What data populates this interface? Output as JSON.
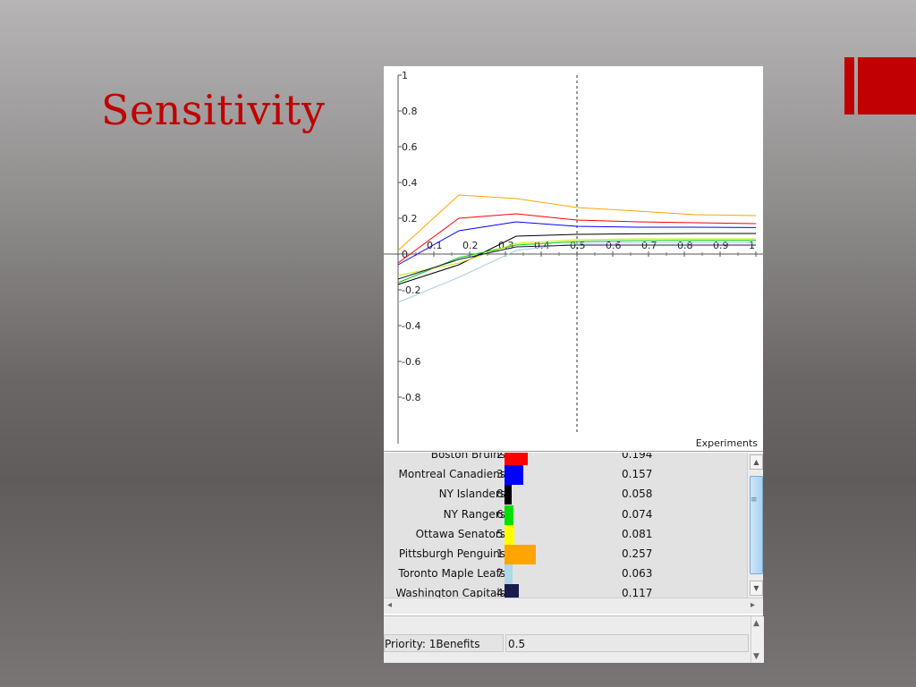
{
  "slide": {
    "title": "Sensitivity"
  },
  "chart_data": {
    "type": "line",
    "xlabel": "Experiments",
    "ylabel": "",
    "xlim": [
      0,
      1
    ],
    "ylim": [
      -1,
      1
    ],
    "x_ticks": [
      "0.1",
      "0.2",
      "0.3",
      "0.4",
      "0.5",
      "0.6",
      "0.7",
      "0.8",
      "0.9",
      "1"
    ],
    "y_ticks": [
      "1",
      "0.8",
      "0.6",
      "0.4",
      "0.2",
      "0",
      "-0.2",
      "-0.4",
      "-0.6",
      "-0.8"
    ],
    "marker_x": 0.5,
    "grid": false,
    "series": [
      {
        "color": "#ffa500",
        "x": [
          0,
          0.17,
          0.33,
          0.5,
          0.67,
          0.83,
          1
        ],
        "y": [
          0.02,
          0.33,
          0.31,
          0.26,
          0.24,
          0.22,
          0.215
        ]
      },
      {
        "color": "#ff0000",
        "x": [
          0,
          0.17,
          0.33,
          0.5,
          0.67,
          0.83,
          1
        ],
        "y": [
          -0.05,
          0.2,
          0.225,
          0.19,
          0.18,
          0.175,
          0.17
        ]
      },
      {
        "color": "#0000ff",
        "x": [
          0,
          0.17,
          0.33,
          0.5,
          0.67,
          0.83,
          1
        ],
        "y": [
          -0.06,
          0.13,
          0.18,
          0.155,
          0.15,
          0.15,
          0.148
        ]
      },
      {
        "color": "#000000",
        "x": [
          0,
          0.17,
          0.33,
          0.5,
          0.67,
          0.83,
          1
        ],
        "y": [
          -0.17,
          -0.06,
          0.1,
          0.11,
          0.113,
          0.115,
          0.115
        ]
      },
      {
        "color": "#00cc00",
        "x": [
          0,
          0.17,
          0.33,
          0.5,
          0.67,
          0.83,
          1
        ],
        "y": [
          -0.16,
          -0.02,
          0.05,
          0.07,
          0.075,
          0.076,
          0.076
        ]
      },
      {
        "color": "#c8e800",
        "x": [
          0,
          0.17,
          0.33,
          0.5,
          0.67,
          0.83,
          1
        ],
        "y": [
          -0.12,
          -0.05,
          0.06,
          0.08,
          0.085,
          0.085,
          0.085
        ]
      },
      {
        "color": "#a8cfe0",
        "x": [
          0,
          0.17,
          0.33,
          0.5,
          0.67,
          0.83,
          1
        ],
        "y": [
          -0.27,
          -0.13,
          0.02,
          0.06,
          0.063,
          0.063,
          0.063
        ]
      },
      {
        "color": "#1a1a4d",
        "x": [
          0,
          0.17,
          0.33,
          0.5,
          0.67,
          0.83,
          1
        ],
        "y": [
          -0.14,
          -0.03,
          0.04,
          0.05,
          0.05,
          0.05,
          0.05
        ]
      }
    ]
  },
  "list": {
    "rows": [
      {
        "name": "Boston Bruins",
        "rank": "2",
        "value": "0.194",
        "numeric": 0.194,
        "color": "#ff0000"
      },
      {
        "name": "Montreal Canadiens",
        "rank": "3",
        "value": "0.157",
        "numeric": 0.157,
        "color": "#0000ff"
      },
      {
        "name": "NY Islanders",
        "rank": "8",
        "value": "0.058",
        "numeric": 0.058,
        "color": "#000000"
      },
      {
        "name": "NY Rangers",
        "rank": "6",
        "value": "0.074",
        "numeric": 0.074,
        "color": "#00e000"
      },
      {
        "name": "Ottawa Senators",
        "rank": "5",
        "value": "0.081",
        "numeric": 0.081,
        "color": "#ffff00"
      },
      {
        "name": "Pittsburgh Penguins",
        "rank": "1",
        "value": "0.257",
        "numeric": 0.257,
        "color": "#ffa500"
      },
      {
        "name": "Toronto Maple Leafs",
        "rank": "7",
        "value": "0.063",
        "numeric": 0.063,
        "color": "#add8e6"
      },
      {
        "name": "Washington Capitals",
        "rank": "4",
        "value": "0.117",
        "numeric": 0.117,
        "color": "#1a1a4d"
      }
    ]
  },
  "properties": {
    "key": "Priority: 1Benefits",
    "value": "0.5"
  }
}
